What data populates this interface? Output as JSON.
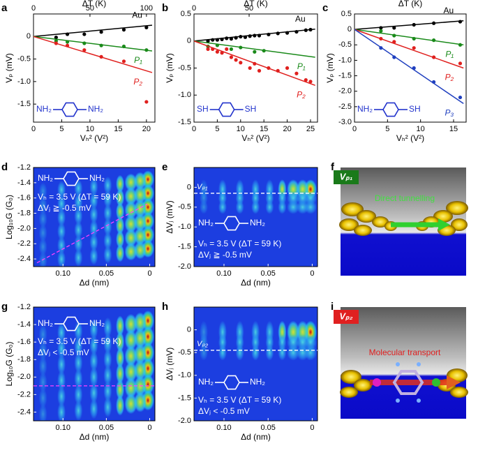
{
  "chart_data": [
    {
      "type": "scatter",
      "panel": "a",
      "xlabel": "Vₕ² (V²)",
      "ylabel": "Vₚ (mV)",
      "x2label": "ΔT (K)",
      "xlim": [
        0,
        21.5
      ],
      "xticks": [
        0,
        5,
        10,
        15,
        20
      ],
      "x2lim": [
        0,
        107.5
      ],
      "x2ticks": [
        0,
        50,
        100
      ],
      "ylim": [
        -1.9,
        0.5
      ],
      "yticks": [
        0,
        -0.5,
        {
          "value": -1,
          "label": "-1.0"
        },
        -1.5
      ],
      "molecule": [
        "NH₂",
        "NH₂"
      ],
      "series": [
        {
          "name": "Au",
          "color": "#000000",
          "x": [
            4,
            6,
            9,
            12,
            16,
            20
          ],
          "values": [
            -0.02,
            0.05,
            0.05,
            0.1,
            0.15,
            0.2
          ],
          "fit": {
            "x": [
              0,
              21
            ],
            "values": [
              0,
              0.25
            ]
          }
        },
        {
          "name": "P₁",
          "color": "#1a8a1a",
          "x": [
            4,
            6,
            9,
            12,
            16,
            20
          ],
          "values": [
            -0.1,
            -0.12,
            -0.15,
            -0.2,
            -0.22,
            -0.3
          ],
          "fit": {
            "x": [
              0,
              21
            ],
            "values": [
              0,
              -0.32
            ]
          }
        },
        {
          "name": "P₂",
          "color": "#e0201e",
          "x": [
            4,
            6,
            9,
            12,
            16,
            20
          ],
          "values": [
            -0.15,
            -0.2,
            -0.3,
            -0.45,
            -0.55,
            -1.45
          ],
          "fit": {
            "x": [
              0,
              21
            ],
            "values": [
              0,
              -0.8
            ]
          }
        }
      ]
    },
    {
      "type": "scatter",
      "panel": "b",
      "xlabel": "Vₕ² (V²)",
      "ylabel": "Vₚ (mV)",
      "x2label": "ΔT (K)",
      "xlim": [
        0,
        26.5
      ],
      "xticks": [
        0,
        5,
        10,
        15,
        20,
        25
      ],
      "x2lim": [
        0,
        112
      ],
      "x2ticks": [
        0,
        50
      ],
      "ylim": [
        -1.5,
        0.5
      ],
      "yticks": [
        0.5,
        0,
        -0.5,
        {
          "value": -1,
          "label": "-1.0"
        },
        -1.5
      ],
      "molecule": [
        "SH",
        "SH"
      ],
      "series": [
        {
          "name": "Au",
          "color": "#000000",
          "x": [
            3,
            4,
            5,
            6,
            7,
            8,
            9,
            10,
            11,
            12,
            13,
            14,
            16,
            18,
            20,
            22,
            24,
            25
          ],
          "values": [
            0,
            0.02,
            0.02,
            0.03,
            0.05,
            0.04,
            0.06,
            0.08,
            0.07,
            0.09,
            0.1,
            0.1,
            0.12,
            0.14,
            0.15,
            0.17,
            0.2,
            0.21
          ],
          "fit": {
            "x": [
              0,
              26
            ],
            "values": [
              0,
              0.22
            ]
          }
        },
        {
          "name": "P₁",
          "color": "#1a8a1a",
          "x": [
            3,
            5,
            8,
            10,
            13,
            15
          ],
          "values": [
            -0.1,
            -0.08,
            -0.15,
            -0.12,
            -0.2,
            -0.18
          ],
          "fit": {
            "x": [
              0,
              26
            ],
            "values": [
              0,
              -0.3
            ]
          }
        },
        {
          "name": "P₂",
          "color": "#e0201e",
          "x": [
            3,
            4,
            5,
            6,
            7,
            8,
            9,
            10,
            12,
            13,
            14,
            16,
            18,
            20,
            22,
            24,
            25
          ],
          "values": [
            -0.15,
            -0.15,
            -0.2,
            -0.22,
            -0.15,
            -0.3,
            -0.35,
            -0.4,
            -0.5,
            -0.42,
            -0.55,
            -0.5,
            -0.55,
            -0.5,
            -0.6,
            -0.72,
            -0.75
          ],
          "fit": {
            "x": [
              0,
              26
            ],
            "values": [
              0,
              -0.82
            ]
          }
        }
      ]
    },
    {
      "type": "scatter",
      "panel": "c",
      "xlabel": "Vₕ² (V²)",
      "ylabel": "Vₚ (mV)",
      "x2label": "ΔT (K)",
      "xlim": [
        0,
        16.9
      ],
      "xticks": [
        0,
        5,
        10,
        15
      ],
      "x2lim": [
        0,
        100
      ],
      "x2ticks": [],
      "ylim": [
        -3,
        0.5
      ],
      "yticks": [
        0.5,
        0,
        -0.5,
        {
          "value": -1,
          "label": "-1.0"
        },
        -1.5,
        {
          "value": -2,
          "label": "-2.0"
        },
        -2.5,
        {
          "value": -3,
          "label": "-3.0"
        }
      ],
      "molecule": [
        "NH₂",
        "SH"
      ],
      "series": [
        {
          "name": "Au",
          "color": "#000000",
          "x": [
            4,
            6,
            9,
            12,
            16
          ],
          "values": [
            0.05,
            0.05,
            0.15,
            0.2,
            0.25
          ],
          "fit": {
            "x": [
              0,
              16.5
            ],
            "values": [
              0,
              0.28
            ]
          }
        },
        {
          "name": "P₁",
          "color": "#1a8a1a",
          "x": [
            4,
            6,
            9,
            12,
            16
          ],
          "values": [
            -0.05,
            -0.2,
            -0.3,
            -0.35,
            -0.5
          ],
          "fit": {
            "x": [
              0,
              16.5
            ],
            "values": [
              0,
              -0.5
            ]
          }
        },
        {
          "name": "P₂",
          "color": "#e0201e",
          "x": [
            4,
            6,
            9,
            12,
            16
          ],
          "values": [
            -0.3,
            -0.4,
            -0.6,
            -0.9,
            -1.1
          ],
          "fit": {
            "x": [
              0,
              16.5
            ],
            "values": [
              0,
              -1.25
            ]
          }
        },
        {
          "name": "P₃",
          "color": "#1f3fbf",
          "x": [
            4,
            6,
            9,
            12,
            16
          ],
          "values": [
            -0.6,
            -0.9,
            -1.25,
            -1.7,
            -2.2
          ],
          "fit": {
            "x": [
              0,
              16.5
            ],
            "values": [
              0,
              -2.4
            ]
          }
        }
      ]
    },
    {
      "type": "heatmap",
      "panel": "d",
      "xlabel": "Δd (nm)",
      "ylabel": "Log₁₀G (G₀)",
      "xlim": [
        0.134,
        -0.006
      ],
      "xticks": [
        {
          "value": 0.1,
          "label": "0.10"
        },
        0.05,
        0
      ],
      "ylim": [
        -2.5,
        -1.2
      ],
      "yticks": [
        -1.2,
        -1.4,
        -1.6,
        -1.8,
        {
          "value": -2,
          "label": "-2.0"
        },
        -2.2,
        -2.4
      ],
      "molecule": [
        "NH₂",
        "NH₂"
      ],
      "annotations": [
        "Vₕ = 3.5 V (ΔT = 59 K)",
        "ΔVⱼ ≧ -0.5 mV"
      ],
      "guide": {
        "x": [
          0.13,
          0.003
        ],
        "values": [
          -2.45,
          -1.68
        ]
      }
    },
    {
      "type": "heatmap",
      "panel": "e",
      "xlabel": "Δd (nm)",
      "ylabel": "ΔVⱼ (mV)",
      "xlim": [
        0.134,
        -0.006
      ],
      "xticks": [
        {
          "value": 0.1,
          "label": "0.10"
        },
        0.05,
        0
      ],
      "ylim": [
        -2,
        0.5
      ],
      "yticks": [
        0,
        -0.5,
        {
          "value": -1,
          "label": "-1.0"
        },
        -1.5,
        {
          "value": -2,
          "label": "-2.0"
        }
      ],
      "molecule": [
        "NH₂",
        "NH₂"
      ],
      "annotations": [
        "Vₕ = 3.5 V (ΔT = 59 K)",
        "ΔVⱼ ≧ -0.5 mV"
      ],
      "reference": {
        "label": "Vₚ₁",
        "value": -0.15
      }
    },
    {
      "type": "illustration",
      "panel": "f",
      "badge": "Vₚ₁",
      "caption": "Direct tunnelling"
    },
    {
      "type": "heatmap",
      "panel": "g",
      "xlabel": "Δd (nm)",
      "ylabel": "Log₁₀G (G₀)",
      "xlim": [
        0.134,
        -0.006
      ],
      "xticks": [
        {
          "value": 0.1,
          "label": "0.10"
        },
        0.05,
        0
      ],
      "ylim": [
        -2.5,
        -1.2
      ],
      "yticks": [
        -1.2,
        -1.4,
        -1.6,
        -1.8,
        {
          "value": -2,
          "label": "-2.0"
        },
        -2.2,
        -2.4
      ],
      "molecule": [
        "NH₂",
        "NH₂"
      ],
      "annotations": [
        "Vₕ = 3.5 V (ΔT = 59 K)",
        "ΔVⱼ < -0.5 mV"
      ],
      "guide": {
        "x": [
          0.134,
          -0.006
        ],
        "values": [
          -2.1,
          -2.1
        ]
      }
    },
    {
      "type": "heatmap",
      "panel": "h",
      "xlabel": "Δd (nm)",
      "ylabel": "ΔVⱼ (mV)",
      "xlim": [
        0.134,
        -0.006
      ],
      "xticks": [
        {
          "value": 0.1,
          "label": "0.10"
        },
        0.05,
        0
      ],
      "ylim": [
        -2,
        0.5
      ],
      "yticks": [
        0,
        -0.5,
        {
          "value": -1,
          "label": "-1.0"
        },
        -1.5,
        {
          "value": -2,
          "label": "-2.0"
        }
      ],
      "molecule": [
        "NH₂",
        "NH₂"
      ],
      "annotations": [
        "Vₕ = 3.5 V (ΔT = 59 K)",
        "ΔVⱼ < -0.5 mV"
      ],
      "reference": {
        "label": "Vₚ₂",
        "value": -0.45
      }
    },
    {
      "type": "illustration",
      "panel": "i",
      "badge": "Vₚ₂",
      "caption": "Molecular transport"
    }
  ]
}
